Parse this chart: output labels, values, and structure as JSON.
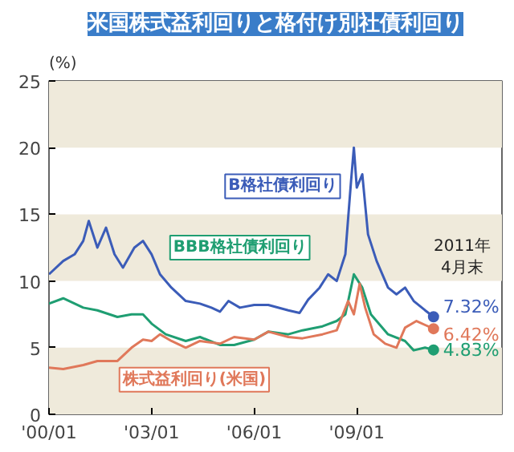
{
  "chart_data": {
    "type": "line",
    "title": "米国株式益利回りと格付け別社債利回り",
    "ylabel": "(%)",
    "xlim": [
      "2000-01",
      "2013-04"
    ],
    "ylim": [
      0,
      25
    ],
    "yticks": [
      0,
      5,
      10,
      15,
      20,
      25
    ],
    "xticks": [
      {
        "value": "2000-01",
        "label": "'00/01"
      },
      {
        "value": "2003-01",
        "label": "'03/01"
      },
      {
        "value": "2006-01",
        "label": "'06/01"
      },
      {
        "value": "2009-01",
        "label": "'09/01"
      }
    ],
    "grid": false,
    "marker": "none",
    "line_style": "solid",
    "bands": [
      {
        "axis": "y",
        "from": 0,
        "to": 5,
        "color": "#efeadb"
      },
      {
        "axis": "y",
        "from": 10,
        "to": 15,
        "color": "#efeadb"
      },
      {
        "axis": "y",
        "from": 20,
        "to": 25,
        "color": "#efeadb"
      }
    ],
    "annotations": [
      "2011年\n4月末"
    ],
    "series": [
      {
        "name": "B格社債利回り",
        "color": "#3b5cb8",
        "x": [
          "2000-01",
          "2000-06",
          "2000-10",
          "2001-01",
          "2001-03",
          "2001-06",
          "2001-09",
          "2001-12",
          "2002-03",
          "2002-07",
          "2002-10",
          "2003-01",
          "2003-04",
          "2003-08",
          "2004-01",
          "2004-06",
          "2004-10",
          "2005-01",
          "2005-04",
          "2005-08",
          "2006-01",
          "2006-06",
          "2007-01",
          "2007-05",
          "2007-08",
          "2007-12",
          "2008-03",
          "2008-06",
          "2008-09",
          "2008-11",
          "2008-12",
          "2009-01",
          "2009-03",
          "2009-05",
          "2009-08",
          "2009-12",
          "2010-03",
          "2010-06",
          "2010-09",
          "2011-01",
          "2011-04"
        ],
        "values": [
          10.5,
          11.5,
          12,
          13,
          14.5,
          12.5,
          14,
          12,
          11,
          12.5,
          13,
          12,
          10.5,
          9.5,
          8.5,
          8.3,
          8,
          7.7,
          8.5,
          8,
          8.2,
          8.2,
          7.8,
          7.6,
          8.6,
          9.5,
          10.5,
          10,
          12,
          17.5,
          20,
          17,
          18,
          13.5,
          11.5,
          9.5,
          9,
          9.5,
          8.5,
          7.8,
          7.32
        ],
        "value_labels": [
          null,
          null,
          null,
          null,
          null,
          null,
          null,
          null,
          null,
          null,
          null,
          null,
          null,
          null,
          null,
          null,
          null,
          null,
          null,
          null,
          null,
          null,
          null,
          null,
          null,
          null,
          null,
          null,
          null,
          null,
          null,
          null,
          null,
          null,
          null,
          null,
          null,
          null,
          null,
          null,
          "7.32%"
        ]
      },
      {
        "name": "BBB格社債利回り",
        "color": "#1f9e72",
        "x": [
          "2000-01",
          "2000-06",
          "2001-01",
          "2001-06",
          "2002-01",
          "2002-06",
          "2002-10",
          "2003-01",
          "2003-06",
          "2004-01",
          "2004-06",
          "2005-01",
          "2005-06",
          "2006-01",
          "2006-06",
          "2007-01",
          "2007-06",
          "2008-01",
          "2008-06",
          "2008-09",
          "2008-11",
          "2008-12",
          "2009-03",
          "2009-06",
          "2009-12",
          "2010-06",
          "2010-09",
          "2011-01",
          "2011-04"
        ],
        "values": [
          8.3,
          8.7,
          8,
          7.8,
          7.3,
          7.5,
          7.5,
          6.8,
          6,
          5.5,
          5.8,
          5.2,
          5.2,
          5.6,
          6.2,
          6,
          6.3,
          6.6,
          7,
          7.5,
          9.5,
          10.5,
          9.5,
          7.5,
          6,
          5.5,
          4.8,
          5,
          4.83
        ],
        "value_labels": [
          null,
          null,
          null,
          null,
          null,
          null,
          null,
          null,
          null,
          null,
          null,
          null,
          null,
          null,
          null,
          null,
          null,
          null,
          null,
          null,
          null,
          null,
          null,
          null,
          null,
          null,
          null,
          null,
          "4.83%"
        ]
      },
      {
        "name": "株式益利回り(米国)",
        "color": "#e0785a",
        "x": [
          "2000-01",
          "2000-06",
          "2001-01",
          "2001-06",
          "2002-01",
          "2002-06",
          "2002-10",
          "2003-01",
          "2003-04",
          "2003-08",
          "2004-01",
          "2004-06",
          "2005-01",
          "2005-06",
          "2006-01",
          "2006-06",
          "2007-01",
          "2007-06",
          "2008-01",
          "2008-06",
          "2008-10",
          "2008-12",
          "2009-02",
          "2009-04",
          "2009-07",
          "2009-11",
          "2010-03",
          "2010-06",
          "2010-10",
          "2011-01",
          "2011-04"
        ],
        "values": [
          3.5,
          3.4,
          3.7,
          4,
          4,
          5,
          5.6,
          5.5,
          6,
          5.5,
          5,
          5.5,
          5.3,
          5.8,
          5.6,
          6.2,
          5.8,
          5.7,
          6,
          6.3,
          8.5,
          7.5,
          9.8,
          8,
          6,
          5.3,
          5,
          6.5,
          7,
          6.7,
          6.42
        ],
        "value_labels": [
          null,
          null,
          null,
          null,
          null,
          null,
          null,
          null,
          null,
          null,
          null,
          null,
          null,
          null,
          null,
          null,
          null,
          null,
          null,
          null,
          null,
          null,
          null,
          null,
          null,
          null,
          null,
          null,
          null,
          null,
          "6.42%"
        ]
      }
    ]
  }
}
